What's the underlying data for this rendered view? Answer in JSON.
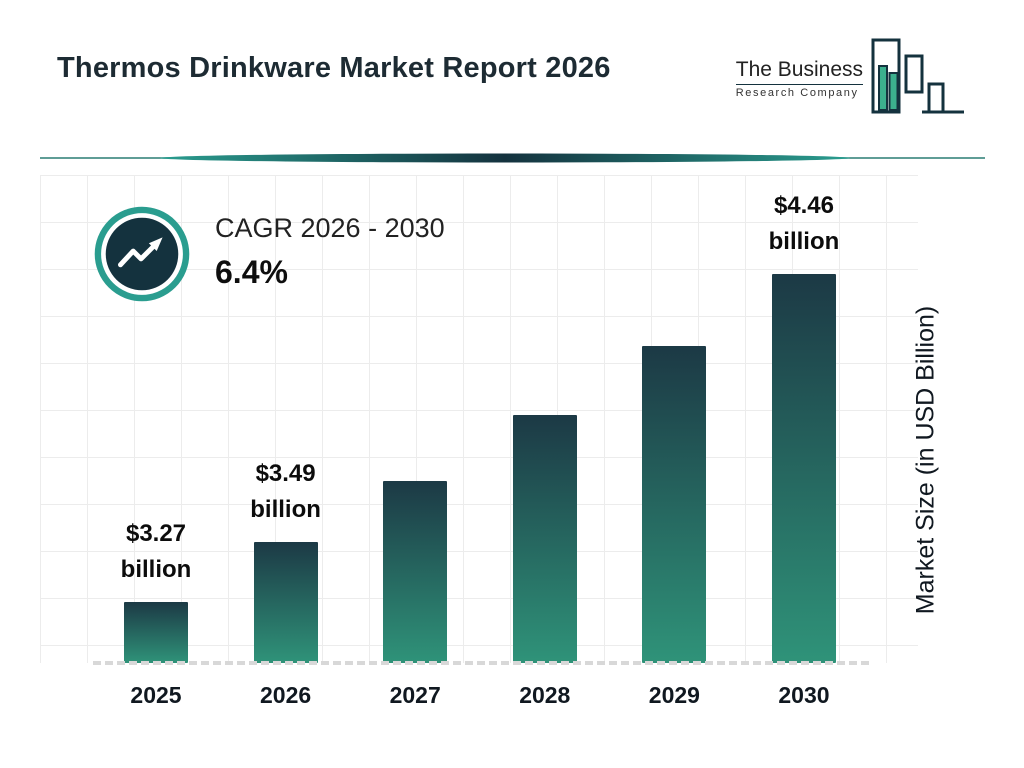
{
  "header": {
    "title": "Thermos Drinkware Market Report 2026",
    "logo": {
      "line1": "The Business",
      "line2": "Research Company"
    }
  },
  "cagr": {
    "label": "CAGR 2026 - 2030",
    "value": "6.4%"
  },
  "chart_data": {
    "type": "bar",
    "title": "Thermos Drinkware Market Report 2026",
    "categories": [
      "2025",
      "2026",
      "2027",
      "2028",
      "2029",
      "2030"
    ],
    "values": [
      3.27,
      3.49,
      3.71,
      3.95,
      4.2,
      4.46
    ],
    "value_unit": "USD Billion",
    "bar_labels": [
      {
        "line1": "$3.27",
        "line2": "billion"
      },
      {
        "line1": "$3.49",
        "line2": "billion"
      },
      null,
      null,
      null,
      {
        "line1": "$4.46",
        "line2": "billion"
      }
    ],
    "xlabel": "",
    "ylabel": "Market Size (in USD Billion)",
    "ylim": [
      3.05,
      4.5
    ],
    "grid": true,
    "legend": false
  },
  "colors": {
    "dark": "#14323e",
    "teal": "#2a9d8f",
    "bar_top": "#1c3945",
    "bar_bottom": "#2f9379",
    "divider": "#1d6b62",
    "grid": "#ececec",
    "baseline": "#d8d8d8"
  }
}
